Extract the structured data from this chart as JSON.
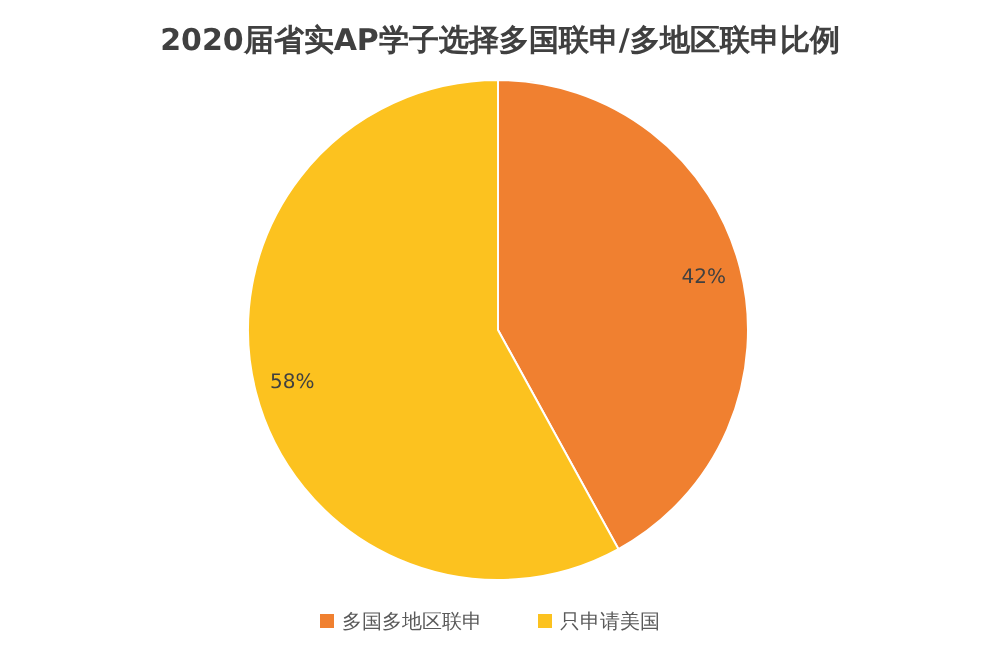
{
  "chart_data": {
    "type": "pie",
    "title": "2020届省实AP学子选择多国联申/多地区联申比例",
    "categories": [
      "多国多地区联申",
      "只申请美国"
    ],
    "values": [
      42,
      58
    ],
    "colors": [
      "#f08030",
      "#fcc21f"
    ],
    "value_labels": [
      "42%",
      "58%"
    ],
    "legend": "bottom"
  }
}
